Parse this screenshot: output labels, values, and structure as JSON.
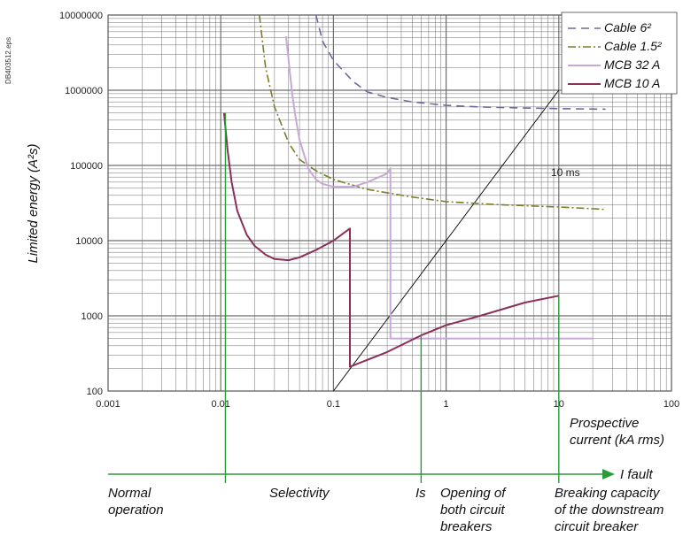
{
  "doc_code": "DB403512.eps",
  "chart_data": {
    "type": "line",
    "x_scale": "log",
    "y_scale": "log",
    "xlim": [
      0.001,
      100
    ],
    "ylim": [
      100,
      10000000
    ],
    "x_tick_labels": [
      "0.001",
      "0.01",
      "0.1",
      "1",
      "10",
      "100"
    ],
    "y_tick_labels": [
      "100",
      "1000",
      "10000",
      "100000",
      "1000000",
      "10000000"
    ],
    "ylabel": "Limited energy (A²s)",
    "xlabel_line1": "Prospective",
    "xlabel_line2": "current (kA rms)",
    "grid": true,
    "legend_position": "top-right",
    "series": [
      {
        "name": "Cable 6²",
        "color": "#6b6b9e",
        "dash": "9,6",
        "points": [
          [
            0.07,
            10000000
          ],
          [
            0.08,
            4500000
          ],
          [
            0.1,
            2500000
          ],
          [
            0.15,
            1300000
          ],
          [
            0.2,
            950000
          ],
          [
            0.3,
            800000
          ],
          [
            0.5,
            700000
          ],
          [
            1,
            630000
          ],
          [
            2,
            600000
          ],
          [
            5,
            580000
          ],
          [
            10,
            570000
          ],
          [
            26,
            560000
          ]
        ]
      },
      {
        "name": "Cable 1.5²",
        "color": "#7d7d28",
        "dash": "9,3,2,3",
        "points": [
          [
            0.022,
            10000000
          ],
          [
            0.025,
            2000000
          ],
          [
            0.03,
            600000
          ],
          [
            0.04,
            200000
          ],
          [
            0.05,
            120000
          ],
          [
            0.07,
            85000
          ],
          [
            0.1,
            65000
          ],
          [
            0.2,
            48000
          ],
          [
            0.5,
            38000
          ],
          [
            1,
            33000
          ],
          [
            3,
            30000
          ],
          [
            10,
            28000
          ],
          [
            26,
            26000
          ]
        ]
      },
      {
        "name": "MCB 32 A",
        "color": "#c8a8d6",
        "dash": "",
        "points": [
          [
            0.038,
            5200000
          ],
          [
            0.04,
            2500000
          ],
          [
            0.043,
            900000
          ],
          [
            0.046,
            450000
          ],
          [
            0.05,
            220000
          ],
          [
            0.06,
            90000
          ],
          [
            0.07,
            65000
          ],
          [
            0.08,
            57000
          ],
          [
            0.1,
            52000
          ],
          [
            0.15,
            52000
          ],
          [
            0.2,
            60000
          ],
          [
            0.3,
            78000
          ],
          [
            0.32,
            92000
          ],
          [
            0.32,
            500
          ],
          [
            1,
            500
          ],
          [
            20,
            500
          ]
        ]
      },
      {
        "name": "MCB 10 A",
        "color": "#8b2f5a",
        "dash": "",
        "points": [
          [
            0.0107,
            500000
          ],
          [
            0.0115,
            160000
          ],
          [
            0.0125,
            60000
          ],
          [
            0.014,
            25000
          ],
          [
            0.017,
            12000
          ],
          [
            0.02,
            8500
          ],
          [
            0.025,
            6500
          ],
          [
            0.03,
            5700
          ],
          [
            0.04,
            5500
          ],
          [
            0.05,
            6000
          ],
          [
            0.07,
            7500
          ],
          [
            0.1,
            10000
          ],
          [
            0.14,
            14500
          ],
          [
            0.14,
            210
          ],
          [
            0.3,
            330
          ],
          [
            0.6,
            550
          ],
          [
            1,
            750
          ],
          [
            2,
            1000
          ],
          [
            5,
            1500
          ],
          [
            10,
            1850
          ]
        ]
      }
    ],
    "reference_line": {
      "label": "10 ms",
      "x": [
        0.1,
        10
      ],
      "y": [
        100,
        1000000
      ]
    },
    "ifault_axis_label": "I fault",
    "markers": [
      {
        "x": 0.011,
        "y_top": 500000
      },
      {
        "x": 0.6,
        "y_top": 550
      },
      {
        "x": 10,
        "y_top": 1850
      }
    ],
    "zones": [
      {
        "line1": "Normal",
        "line2": "operation",
        "line3": ""
      },
      {
        "line1": "Selectivity",
        "line2": "",
        "line3": ""
      },
      {
        "line1": "Is",
        "line2": "",
        "line3": ""
      },
      {
        "line1": "Opening of",
        "line2": "both circuit",
        "line3": "breakers"
      },
      {
        "line1": "Breaking capacity",
        "line2": "of the downstream",
        "line3": "circuit breaker"
      }
    ],
    "colors": {
      "grid": "#6e6e6e",
      "green": "#2a9a3a",
      "reference": "#000000"
    }
  }
}
